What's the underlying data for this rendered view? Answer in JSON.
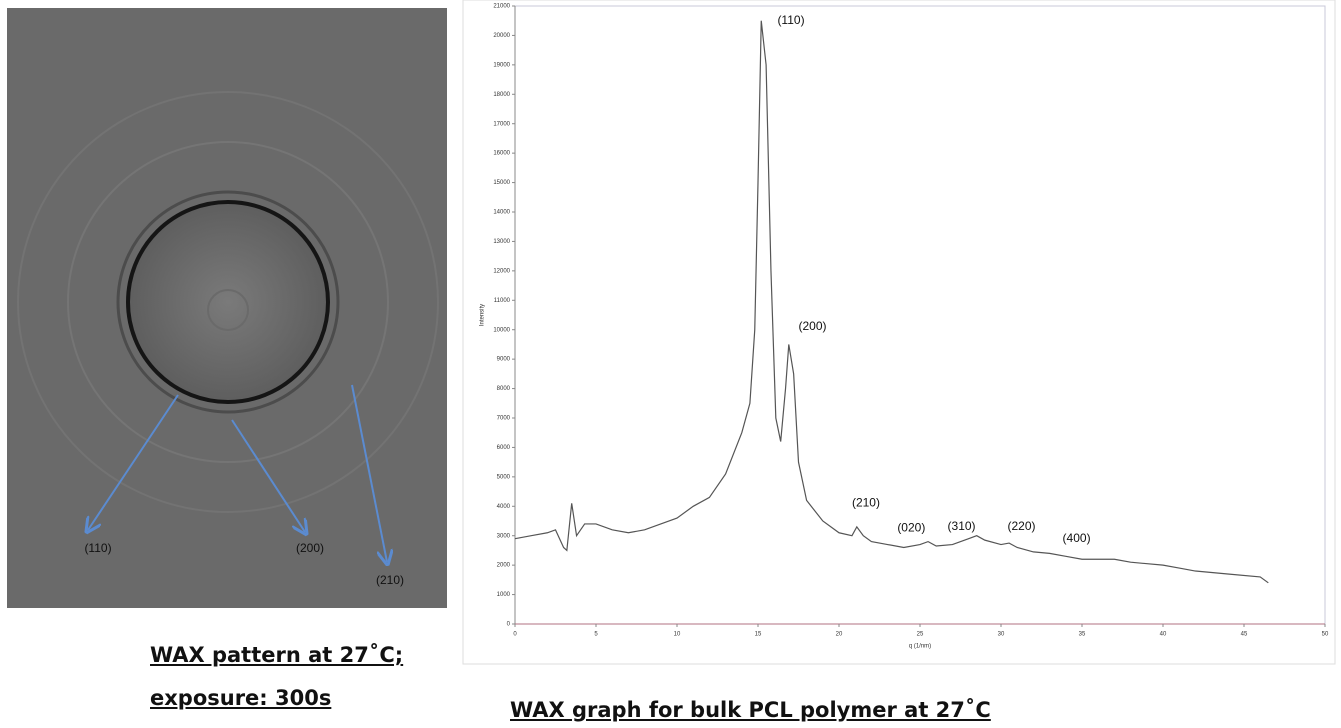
{
  "pattern": {
    "labels": [
      "(110)",
      "(200)",
      "(210)"
    ],
    "caption": [
      "WAX pattern at 27˚C;",
      "exposure: 300s"
    ]
  },
  "chart_data": {
    "type": "line",
    "title": "WAX graph for bulk PCL polymer at 27˚C",
    "x_label": "q (1/nm)",
    "y_label": "Intensity",
    "x": [
      0,
      1,
      2,
      2.5,
      3,
      3.2,
      3.5,
      3.8,
      4.3,
      5,
      6,
      7,
      8,
      9,
      10,
      11,
      12,
      13,
      14,
      14.5,
      14.8,
      15,
      15.2,
      15.5,
      15.8,
      16.1,
      16.4,
      16.7,
      16.9,
      17.2,
      17.5,
      18,
      19,
      20,
      20.8,
      21.1,
      21.5,
      22,
      23,
      24,
      25,
      25.5,
      26,
      27,
      28,
      28.5,
      29,
      30,
      30.5,
      31,
      32,
      33,
      34,
      35,
      37,
      38,
      40,
      41,
      42,
      44,
      46,
      46.5
    ],
    "series": [
      {
        "name": "Intensity",
        "color": "#555555",
        "values": [
          2900,
          3000,
          3100,
          3200,
          2600,
          2500,
          4100,
          3000,
          3400,
          3400,
          3200,
          3100,
          3200,
          3400,
          3600,
          4000,
          4300,
          5100,
          6500,
          7500,
          10000,
          15000,
          20500,
          19000,
          12000,
          7000,
          6200,
          8000,
          9500,
          8500,
          5500,
          4200,
          3500,
          3100,
          3000,
          3300,
          3000,
          2800,
          2700,
          2600,
          2700,
          2800,
          2650,
          2700,
          2900,
          3000,
          2850,
          2700,
          2750,
          2600,
          2450,
          2400,
          2300,
          2200,
          2200,
          2100,
          2000,
          1900,
          1800,
          1700,
          1600,
          1400
        ]
      }
    ],
    "xlim": [
      0,
      50
    ],
    "xticks": [
      0,
      5,
      10,
      15,
      20,
      25,
      30,
      35,
      40,
      45,
      50
    ],
    "ylim": [
      0,
      21000
    ],
    "yticks": [
      0,
      1000,
      2000,
      3000,
      4000,
      5000,
      6000,
      7000,
      8000,
      9000,
      10000,
      11000,
      12000,
      13000,
      14000,
      15000,
      16000,
      17000,
      18000,
      19000,
      20000,
      21000
    ],
    "annotations": [
      {
        "text": "(110)",
        "x": 16.2,
        "y": 20500
      },
      {
        "text": "(200)",
        "x": 17.5,
        "y": 10100
      },
      {
        "text": "(210)",
        "x": 20.8,
        "y": 4100
      },
      {
        "text": "(020)",
        "x": 23.6,
        "y": 3250
      },
      {
        "text": "(310)",
        "x": 26.7,
        "y": 3300
      },
      {
        "text": "(220)",
        "x": 30.4,
        "y": 3300
      },
      {
        "text": "(400)",
        "x": 33.8,
        "y": 2900
      }
    ]
  }
}
